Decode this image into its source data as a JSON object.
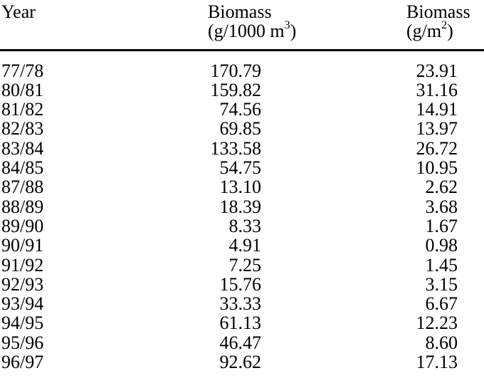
{
  "table": {
    "header": {
      "year": {
        "label": "Year"
      },
      "biomass_volume": {
        "label": "Biomass",
        "unit_prefix": "(g/1000 m",
        "unit_sup": "3",
        "unit_suffix": ")"
      },
      "biomass_area": {
        "label": "Biomass",
        "unit_prefix": "(g/m",
        "unit_sup": "2",
        "unit_suffix": ")"
      }
    },
    "rows": [
      [
        "77/78",
        "170.79",
        "23.91"
      ],
      [
        "80/81",
        "159.82",
        "31.16"
      ],
      [
        "81/82",
        "74.56",
        "14.91"
      ],
      [
        "82/83",
        "69.85",
        "13.97"
      ],
      [
        "83/84",
        "133.58",
        "26.72"
      ],
      [
        "84/85",
        "54.75",
        "10.95"
      ],
      [
        "87/88",
        "13.10",
        "2.62"
      ],
      [
        "88/89",
        "18.39",
        "3.68"
      ],
      [
        "89/90",
        "8.33",
        "1.67"
      ],
      [
        "90/91",
        "4.91",
        "0.98"
      ],
      [
        "91/92",
        "7.25",
        "1.45"
      ],
      [
        "92/93",
        "15.76",
        "3.15"
      ],
      [
        "93/94",
        "33.33",
        "6.67"
      ],
      [
        "94/95",
        "61.13",
        "12.23"
      ],
      [
        "95/96",
        "46.47",
        "8.60"
      ],
      [
        "96/97",
        "92.62",
        "17.13"
      ]
    ]
  },
  "colors": {
    "text": "#000000",
    "background": "#ffffff",
    "rule": "#000000"
  }
}
